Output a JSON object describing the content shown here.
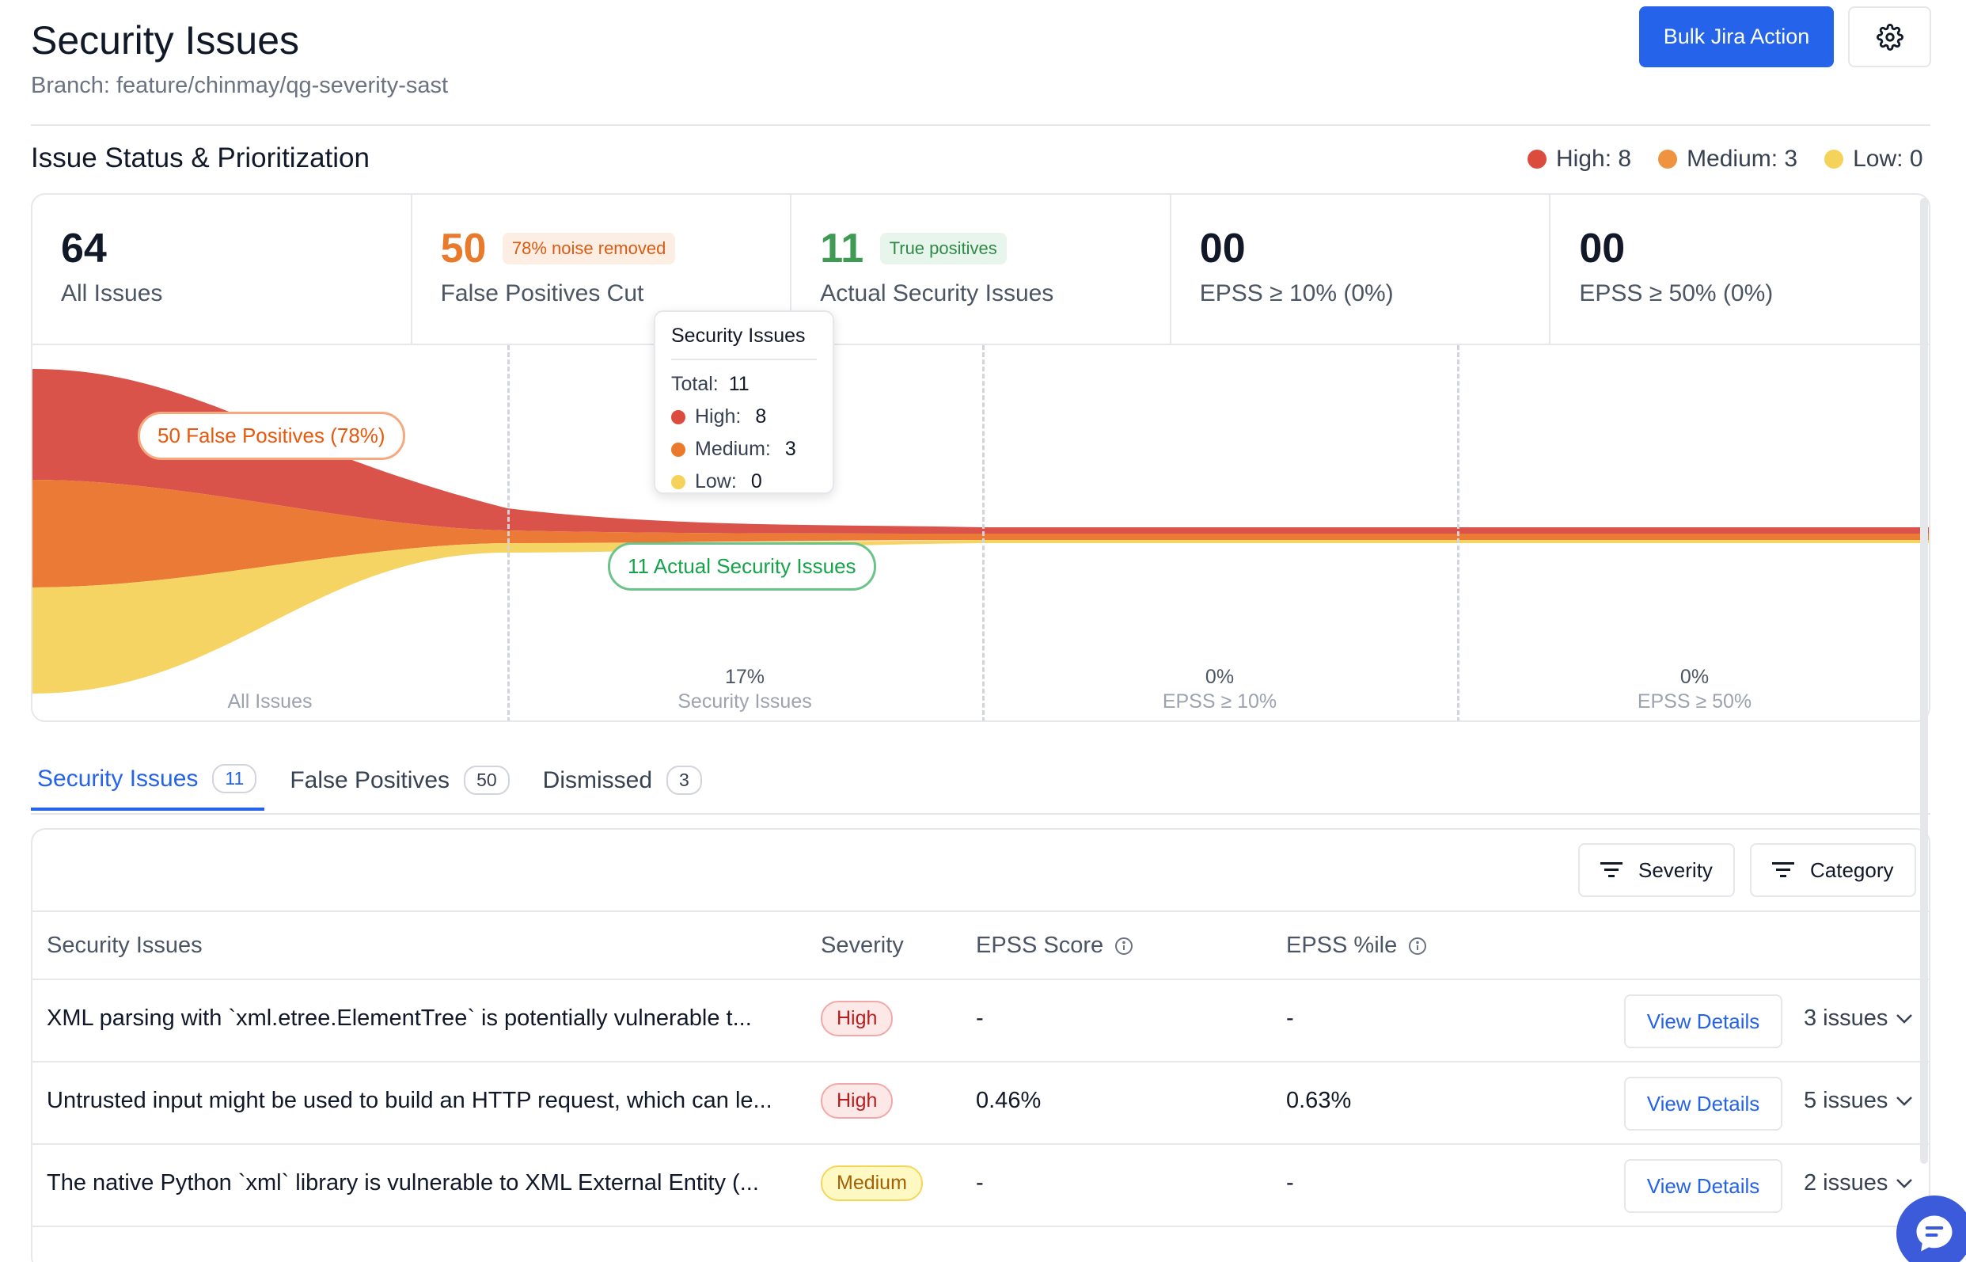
{
  "header": {
    "title": "Security Issues",
    "branch": "Branch: feature/chinmay/qg-severity-sast",
    "bulk_button": "Bulk Jira Action"
  },
  "section": {
    "title": "Issue Status & Prioritization",
    "legend": [
      {
        "label": "High: 8",
        "color": "#dc4c3e"
      },
      {
        "label": "Medium: 3",
        "color": "#ee9440"
      },
      {
        "label": "Low: 0",
        "color": "#f5d35a"
      }
    ]
  },
  "stats": [
    {
      "value": "64",
      "label": "All Issues",
      "color": "#111827",
      "chip": ""
    },
    {
      "value": "50",
      "label": "False Positives Cut",
      "color": "#ea7a2b",
      "chip": "78% noise removed"
    },
    {
      "value": "11",
      "label": "Actual Security Issues",
      "color": "#3f9b54",
      "chip": "True positives"
    },
    {
      "value": "00",
      "label": "EPSS ≥ 10% (0%)",
      "color": "#111827",
      "chip": ""
    },
    {
      "value": "00",
      "label": "EPSS ≥ 50% (0%)",
      "color": "#111827",
      "chip": ""
    }
  ],
  "funnel": {
    "columns": [
      {
        "label": "All Issues",
        "pct": ""
      },
      {
        "label": "Security Issues",
        "pct": "17%"
      },
      {
        "label": "EPSS ≥ 10%",
        "pct": "0%"
      },
      {
        "label": "EPSS ≥ 50%",
        "pct": "0%"
      }
    ],
    "false_pos_label": "50 False Positives (78%)",
    "actual_label": "11 Actual Security Issues"
  },
  "tooltip": {
    "title": "Security Issues",
    "total_label": "Total:",
    "total_value": "11",
    "rows": [
      {
        "label": "High:",
        "value": "8",
        "color": "#dc4c3e"
      },
      {
        "label": "Medium:",
        "value": "3",
        "color": "#ea7a2b"
      },
      {
        "label": "Low:",
        "value": "0",
        "color": "#f5d35a"
      }
    ]
  },
  "tabs": [
    {
      "label": "Security Issues",
      "count": "11"
    },
    {
      "label": "False Positives",
      "count": "50"
    },
    {
      "label": "Dismissed",
      "count": "3"
    }
  ],
  "filters": {
    "severity": "Severity",
    "category": "Category"
  },
  "table": {
    "headers": {
      "issue": "Security Issues",
      "severity": "Severity",
      "epss_score": "EPSS Score",
      "epss_pct": "EPSS %ile"
    },
    "rows": [
      {
        "issue": "XML parsing with `xml.etree.ElementTree` is potentially vulnerable t...",
        "severity": "High",
        "epss_score": "-",
        "epss_pct": "-",
        "action": "View Details",
        "issues": "3 issues"
      },
      {
        "issue": "Untrusted input might be used to build an HTTP request, which can le...",
        "severity": "High",
        "epss_score": "0.46%",
        "epss_pct": "0.63%",
        "action": "View Details",
        "issues": "5 issues"
      },
      {
        "issue": "The native Python `xml` library is vulnerable to XML External Entity (...",
        "severity": "Medium",
        "epss_score": "-",
        "epss_pct": "-",
        "action": "View Details",
        "issues": "2 issues"
      }
    ]
  }
}
